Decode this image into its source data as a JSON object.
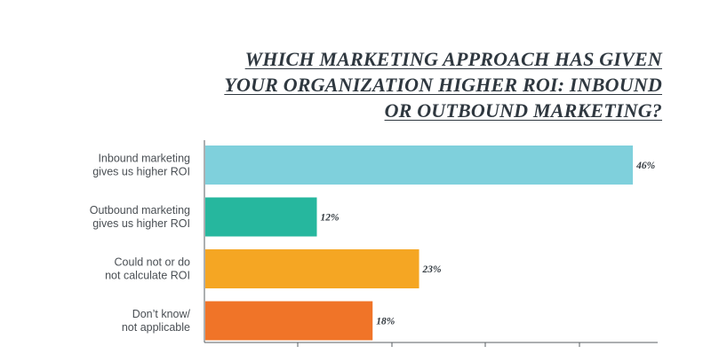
{
  "title_lines": [
    "WHICH MARKETING APPROACH HAS GIVEN",
    "YOUR ORGANIZATION HIGHER ROI: INBOUND",
    "OR OUTBOUND MARKETING?"
  ],
  "chart_data": {
    "type": "bar",
    "orientation": "horizontal",
    "title": "WHICH MARKETING APPROACH HAS GIVEN YOUR ORGANIZATION HIGHER ROI: INBOUND OR OUTBOUND MARKETING?",
    "categories": [
      [
        "Inbound marketing",
        "gives us higher ROI"
      ],
      [
        "Outbound marketing",
        "gives us higher ROI"
      ],
      [
        "Could not or do",
        "not calculate ROI"
      ],
      [
        "Don’t know/",
        "not applicable"
      ]
    ],
    "values": [
      46,
      12,
      23,
      18
    ],
    "value_labels": [
      "46%",
      "12%",
      "23%",
      "18%"
    ],
    "colors": [
      "#7fd0dc",
      "#26b79e",
      "#f5a623",
      "#f07428"
    ],
    "xlim": [
      0,
      48
    ],
    "grid": false
  }
}
